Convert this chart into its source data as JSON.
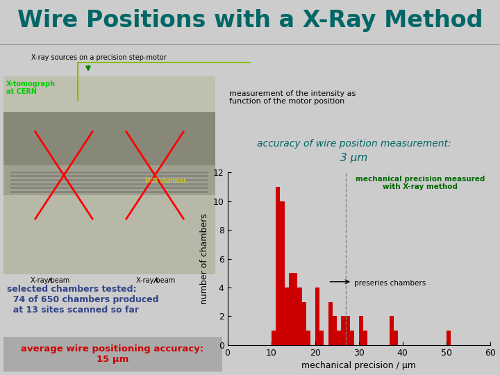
{
  "title": "Wire Positions with a X-Ray Method",
  "title_color": "#006666",
  "title_fontsize": 24,
  "bg_color": "#cccccc",
  "accuracy_text1": "accuracy of wire position measurement:",
  "accuracy_text2": "3 μm",
  "accuracy_color": "#006666",
  "selected_text": "selected chambers tested:\n  74 of 650 chambers produced\n  at 13 sites scanned so far",
  "selected_color": "#334488",
  "avg_text": "average wire positioning accuracy:\n15 μm",
  "avg_color": "#cc0000",
  "avg_bg": "#aaaaaa",
  "legend_text": "mechanical precision measured\nwith X-ray method",
  "legend_color": "#006600",
  "preseries_text": "preseries chambers",
  "xlabel": "mechanical precision / μm",
  "ylabel": "number of chambers",
  "bar_color": "#cc0000",
  "dashed_line_x": 27,
  "xlim": [
    0,
    60
  ],
  "ylim": [
    0,
    12
  ],
  "yticks": [
    0,
    2,
    4,
    6,
    8,
    10,
    12
  ],
  "xticks": [
    0,
    10,
    20,
    30,
    40,
    50,
    60
  ],
  "hist_bins": [
    10,
    11,
    12,
    13,
    14,
    15,
    16,
    17,
    18,
    19,
    20,
    21,
    22,
    23,
    24,
    25,
    26,
    27,
    28,
    29,
    30,
    31,
    32,
    33,
    34,
    35,
    36,
    37,
    38,
    39,
    40,
    41,
    42,
    43,
    44,
    45,
    46,
    47,
    48,
    49,
    50,
    51
  ],
  "hist_values": [
    1,
    11,
    10,
    4,
    5,
    5,
    4,
    3,
    1,
    0,
    4,
    1,
    0,
    3,
    2,
    1,
    2,
    2,
    1,
    0,
    2,
    1,
    0,
    0,
    0,
    0,
    0,
    2,
    1,
    0,
    0,
    0,
    0,
    0,
    0,
    0,
    0,
    0,
    0,
    0,
    1,
    0
  ],
  "meas_text": "measurement of the intensity as\nfunction of the motor position",
  "xray_label": "X-ray sources on a precision step-motor",
  "xtomo_label": "X-tomograph\nat CERN",
  "mdt_label": "MDT chamber",
  "beam_label1": "X-ray beam",
  "beam_label2": "X-ray beam"
}
